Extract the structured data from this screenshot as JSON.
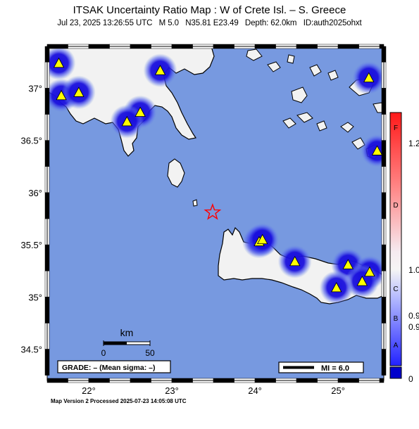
{
  "title": "ITSAK Uncertainty Ratio Map : W of Crete Isl. – S. Greece",
  "subtitle": {
    "datetime": "Jul 23, 2025 13:26:55 UTC",
    "magnitude": "M 5.0",
    "location": "N35.81 E23.49",
    "depth": "Depth: 62.0km",
    "event_id": "ID:auth2025ohxt"
  },
  "axes": {
    "lat_ticks": [
      "37°",
      "36.5°",
      "36°",
      "35.5°",
      "35°",
      "34.5°"
    ],
    "lon_ticks": [
      "22°",
      "23°",
      "24°",
      "25°"
    ],
    "lat_range": [
      34.2,
      37.4
    ],
    "lon_range": [
      21.5,
      25.55
    ]
  },
  "scalebar": {
    "unit": "km",
    "min": "0",
    "max": "50"
  },
  "grade_box": "GRADE: – (Mean sigma: –)",
  "mi_legend": "MI = 6.0",
  "colorbar": {
    "letters": [
      "F",
      "D",
      "C",
      "B",
      "A"
    ],
    "values": [
      "1.2",
      "1.0",
      "0.9",
      "0.9",
      "0"
    ]
  },
  "epicenter": {
    "lat": 35.81,
    "lon": 23.49
  },
  "stations": [
    {
      "lat": 37.24,
      "lon": 21.64
    },
    {
      "lat": 37.17,
      "lon": 22.86
    },
    {
      "lat": 36.93,
      "lon": 21.67
    },
    {
      "lat": 36.96,
      "lon": 21.88
    },
    {
      "lat": 36.77,
      "lon": 22.62
    },
    {
      "lat": 36.68,
      "lon": 22.46
    },
    {
      "lat": 37.1,
      "lon": 25.37
    },
    {
      "lat": 36.4,
      "lon": 25.47
    },
    {
      "lat": 35.53,
      "lon": 24.05
    },
    {
      "lat": 35.55,
      "lon": 24.09
    },
    {
      "lat": 35.34,
      "lon": 24.48
    },
    {
      "lat": 35.31,
      "lon": 25.12
    },
    {
      "lat": 35.24,
      "lon": 25.38
    },
    {
      "lat": 35.15,
      "lon": 25.29
    },
    {
      "lat": 35.09,
      "lon": 24.98
    }
  ],
  "colors": {
    "sea": "#7799e0",
    "land": "#f2f2f2",
    "uncertainty_low": "#1a10dd",
    "station": "#ffff00",
    "epicenter": "#ff0000"
  },
  "footer": "Map Version 2 Processed 2025-07-23 14:05:08 UTC"
}
